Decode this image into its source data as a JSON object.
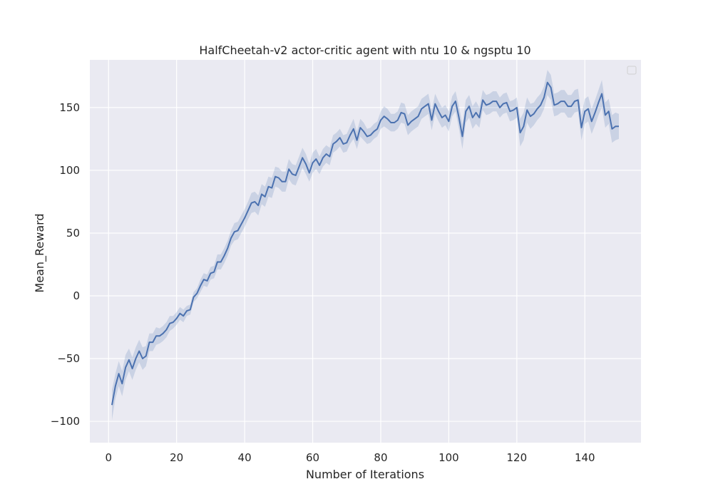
{
  "chart_data": {
    "type": "line",
    "title": "HalfCheetah-v2 actor-critic agent with ntu 10 & ngsptu 10",
    "xlabel": "Number of Iterations",
    "ylabel": "Mean_Reward",
    "xlim": [
      -5.5,
      156.5
    ],
    "ylim": [
      -117,
      188
    ],
    "xticks": [
      0,
      20,
      40,
      60,
      80,
      100,
      120,
      140
    ],
    "yticks": [
      -100,
      -50,
      0,
      50,
      100,
      150
    ],
    "grid": true,
    "legend": "top-right (empty)",
    "colors": {
      "background": "#eaeaf2",
      "grid": "#ffffff",
      "line": "#4c72b0",
      "band": "#4c72b0"
    },
    "series": [
      {
        "x": [
          1,
          2,
          3,
          4,
          5,
          6,
          7,
          8,
          9,
          10,
          11,
          12,
          13,
          14,
          15,
          16,
          17,
          18,
          19,
          20,
          21,
          22,
          23,
          24,
          25,
          26,
          27,
          28,
          29,
          30,
          31,
          32,
          33,
          34,
          35,
          36,
          37,
          38,
          39,
          40,
          41,
          42,
          43,
          44,
          45,
          46,
          47,
          48,
          49,
          50,
          51,
          52,
          53,
          54,
          55,
          56,
          57,
          58,
          59,
          60,
          61,
          62,
          63,
          64,
          65,
          66,
          67,
          68,
          69,
          70,
          71,
          72,
          73,
          74,
          75,
          76,
          77,
          78,
          79,
          80,
          81,
          82,
          83,
          84,
          85,
          86,
          87,
          88,
          89,
          90,
          91,
          92,
          93,
          94,
          95,
          96,
          97,
          98,
          99,
          100,
          101,
          102,
          103,
          104,
          105,
          106,
          107,
          108,
          109,
          110,
          111,
          112,
          113,
          114,
          115,
          116,
          117,
          118,
          119,
          120,
          121,
          122,
          123,
          124,
          125,
          126,
          127,
          128,
          129,
          130,
          131,
          132,
          133,
          134,
          135,
          136,
          137,
          138,
          139,
          140,
          141,
          142,
          143,
          144,
          145,
          146,
          147,
          148,
          149,
          150
        ],
        "values": [
          -87,
          -72,
          -62,
          -70,
          -57,
          -51,
          -58,
          -50,
          -44,
          -50,
          -48,
          -37,
          -37,
          -32,
          -32,
          -30,
          -27,
          -22,
          -21,
          -18,
          -14,
          -16,
          -12,
          -11,
          -1,
          2,
          8,
          13,
          12,
          18,
          19,
          27,
          27,
          32,
          38,
          46,
          51,
          52,
          57,
          62,
          68,
          74,
          75,
          72,
          81,
          79,
          87,
          86,
          95,
          94,
          91,
          91,
          101,
          97,
          96,
          103,
          110,
          105,
          98,
          106,
          109,
          104,
          110,
          113,
          111,
          121,
          123,
          126,
          121,
          122,
          128,
          133,
          124,
          134,
          131,
          127,
          128,
          131,
          133,
          140,
          143,
          141,
          138,
          138,
          140,
          146,
          145,
          136,
          139,
          141,
          143,
          149,
          151,
          153,
          140,
          153,
          147,
          142,
          144,
          139,
          151,
          155,
          142,
          127,
          147,
          151,
          142,
          146,
          142,
          156,
          152,
          153,
          155,
          155,
          150,
          153,
          154,
          147,
          148,
          150,
          130,
          135,
          148,
          143,
          145,
          149,
          152,
          158,
          170,
          166,
          152,
          153,
          155,
          155,
          151,
          151,
          155,
          156,
          134,
          147,
          149,
          139,
          146,
          154,
          161,
          144,
          147,
          133,
          135,
          135
        ],
        "lower": [
          -99,
          -82,
          -72,
          -80,
          -67,
          -60,
          -67,
          -59,
          -53,
          -59,
          -56,
          -44,
          -44,
          -39,
          -38,
          -36,
          -33,
          -28,
          -26,
          -23,
          -19,
          -21,
          -16,
          -15,
          -5,
          -2,
          3,
          8,
          7,
          13,
          14,
          21,
          21,
          26,
          32,
          40,
          44,
          45,
          50,
          55,
          61,
          66,
          67,
          64,
          73,
          71,
          79,
          78,
          87,
          86,
          83,
          83,
          93,
          89,
          88,
          95,
          102,
          97,
          91,
          98,
          101,
          97,
          103,
          106,
          104,
          114,
          116,
          119,
          114,
          115,
          121,
          125,
          117,
          127,
          124,
          121,
          122,
          125,
          127,
          133,
          135,
          133,
          131,
          131,
          133,
          138,
          137,
          128,
          131,
          133,
          135,
          141,
          143,
          145,
          132,
          145,
          139,
          134,
          136,
          131,
          143,
          147,
          133,
          117,
          138,
          142,
          133,
          137,
          134,
          148,
          144,
          145,
          147,
          147,
          142,
          145,
          146,
          139,
          140,
          142,
          119,
          124,
          138,
          133,
          136,
          140,
          143,
          149,
          160,
          156,
          143,
          144,
          146,
          146,
          142,
          142,
          146,
          147,
          124,
          137,
          139,
          129,
          136,
          144,
          150,
          134,
          137,
          122,
          124,
          125
        ],
        "upper": [
          -75,
          -62,
          -52,
          -60,
          -47,
          -42,
          -49,
          -41,
          -35,
          -41,
          -40,
          -30,
          -30,
          -25,
          -26,
          -24,
          -21,
          -16,
          -16,
          -13,
          -9,
          -11,
          -8,
          -7,
          3,
          6,
          13,
          18,
          17,
          23,
          24,
          33,
          33,
          38,
          44,
          52,
          58,
          59,
          64,
          69,
          75,
          82,
          83,
          80,
          89,
          87,
          95,
          94,
          103,
          102,
          99,
          99,
          109,
          105,
          104,
          111,
          118,
          113,
          105,
          114,
          117,
          111,
          117,
          120,
          118,
          128,
          130,
          133,
          128,
          129,
          135,
          141,
          131,
          141,
          138,
          133,
          134,
          137,
          139,
          147,
          151,
          149,
          145,
          145,
          147,
          154,
          153,
          144,
          147,
          149,
          151,
          157,
          159,
          161,
          148,
          161,
          155,
          150,
          152,
          147,
          159,
          163,
          151,
          137,
          156,
          160,
          151,
          155,
          150,
          164,
          160,
          161,
          163,
          163,
          158,
          161,
          162,
          155,
          156,
          158,
          141,
          146,
          158,
          153,
          154,
          158,
          161,
          167,
          180,
          176,
          161,
          162,
          164,
          164,
          160,
          160,
          164,
          165,
          144,
          157,
          159,
          149,
          156,
          164,
          172,
          154,
          157,
          144,
          146,
          145
        ]
      }
    ]
  }
}
